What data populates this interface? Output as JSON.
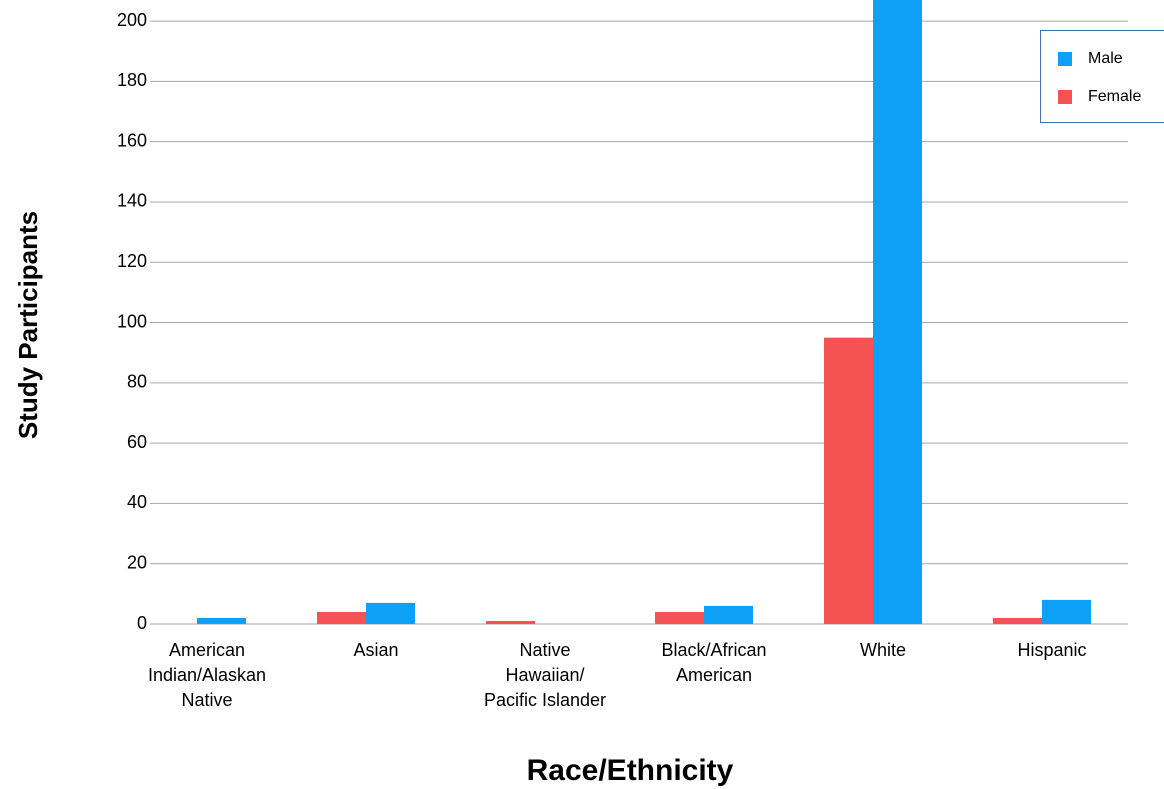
{
  "chart_data": {
    "type": "bar",
    "x_label": "Race/Ethnicity",
    "y_label": "Study Participants",
    "categories": [
      "American\nIndian/Alaskan\nNative",
      "Asian",
      "Native\nHawaiian/\nPacific Islander",
      "Black/African\nAmerican",
      "White",
      "Hispanic"
    ],
    "series": [
      {
        "name": "Female",
        "color": "#f55353",
        "values": [
          0,
          4,
          1,
          4,
          95,
          2
        ]
      },
      {
        "name": "Male",
        "color": "#0ea0f7",
        "values": [
          2,
          7,
          0,
          6,
          210,
          8
        ]
      }
    ],
    "ylim": [
      0,
      207
    ],
    "yticks": [
      0,
      20,
      40,
      60,
      80,
      100,
      120,
      140,
      160,
      180,
      200
    ],
    "grid": true,
    "legend": "top-right"
  }
}
